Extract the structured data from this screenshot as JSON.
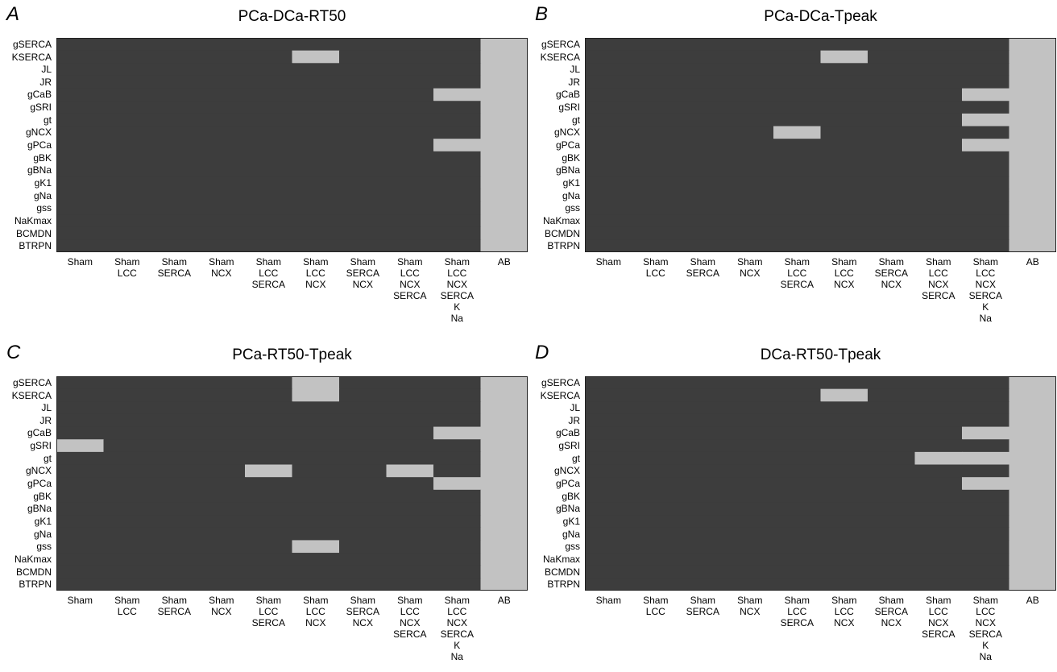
{
  "chart_data": [
    {
      "type": "heatmap",
      "panel": "A",
      "title": "PCa-DCa-RT50",
      "rows": [
        "gSERCA",
        "KSERCA",
        "JL",
        "JR",
        "gCaB",
        "gSRI",
        "gt",
        "gNCX",
        "gPCa",
        "gBK",
        "gBNa",
        "gK1",
        "gNa",
        "gss",
        "NaKmax",
        "BCMDN",
        "BTRPN"
      ],
      "columns": [
        [
          "Sham"
        ],
        [
          "Sham",
          "LCC"
        ],
        [
          "Sham",
          "SERCA"
        ],
        [
          "Sham",
          "NCX"
        ],
        [
          "Sham",
          "LCC",
          "SERCA"
        ],
        [
          "Sham",
          "LCC",
          "NCX"
        ],
        [
          "Sham",
          "SERCA",
          "NCX"
        ],
        [
          "Sham",
          "LCC",
          "NCX",
          "SERCA"
        ],
        [
          "Sham",
          "LCC",
          "NCX",
          "SERCA",
          "K",
          "Na"
        ],
        [
          "AB"
        ]
      ],
      "colors": {
        "off": "#3d3d3d",
        "on": "#c2c2c2"
      },
      "matrix": [
        [
          0,
          0,
          0,
          0,
          0,
          0,
          0,
          0,
          0,
          1
        ],
        [
          0,
          0,
          0,
          0,
          0,
          1,
          0,
          0,
          0,
          1
        ],
        [
          0,
          0,
          0,
          0,
          0,
          0,
          0,
          0,
          0,
          1
        ],
        [
          0,
          0,
          0,
          0,
          0,
          0,
          0,
          0,
          0,
          1
        ],
        [
          0,
          0,
          0,
          0,
          0,
          0,
          0,
          0,
          1,
          1
        ],
        [
          0,
          0,
          0,
          0,
          0,
          0,
          0,
          0,
          0,
          1
        ],
        [
          0,
          0,
          0,
          0,
          0,
          0,
          0,
          0,
          0,
          1
        ],
        [
          0,
          0,
          0,
          0,
          0,
          0,
          0,
          0,
          0,
          1
        ],
        [
          0,
          0,
          0,
          0,
          0,
          0,
          0,
          0,
          1,
          1
        ],
        [
          0,
          0,
          0,
          0,
          0,
          0,
          0,
          0,
          0,
          1
        ],
        [
          0,
          0,
          0,
          0,
          0,
          0,
          0,
          0,
          0,
          1
        ],
        [
          0,
          0,
          0,
          0,
          0,
          0,
          0,
          0,
          0,
          1
        ],
        [
          0,
          0,
          0,
          0,
          0,
          0,
          0,
          0,
          0,
          1
        ],
        [
          0,
          0,
          0,
          0,
          0,
          0,
          0,
          0,
          0,
          1
        ],
        [
          0,
          0,
          0,
          0,
          0,
          0,
          0,
          0,
          0,
          1
        ],
        [
          0,
          0,
          0,
          0,
          0,
          0,
          0,
          0,
          0,
          1
        ],
        [
          0,
          0,
          0,
          0,
          0,
          0,
          0,
          0,
          0,
          1
        ]
      ]
    },
    {
      "type": "heatmap",
      "panel": "B",
      "title": "PCa-DCa-Tpeak",
      "rows": [
        "gSERCA",
        "KSERCA",
        "JL",
        "JR",
        "gCaB",
        "gSRI",
        "gt",
        "gNCX",
        "gPCa",
        "gBK",
        "gBNa",
        "gK1",
        "gNa",
        "gss",
        "NaKmax",
        "BCMDN",
        "BTRPN"
      ],
      "columns": [
        [
          "Sham"
        ],
        [
          "Sham",
          "LCC"
        ],
        [
          "Sham",
          "SERCA"
        ],
        [
          "Sham",
          "NCX"
        ],
        [
          "Sham",
          "LCC",
          "SERCA"
        ],
        [
          "Sham",
          "LCC",
          "NCX"
        ],
        [
          "Sham",
          "SERCA",
          "NCX"
        ],
        [
          "Sham",
          "LCC",
          "NCX",
          "SERCA"
        ],
        [
          "Sham",
          "LCC",
          "NCX",
          "SERCA",
          "K",
          "Na"
        ],
        [
          "AB"
        ]
      ],
      "colors": {
        "off": "#3d3d3d",
        "on": "#c2c2c2"
      },
      "matrix": [
        [
          0,
          0,
          0,
          0,
          0,
          0,
          0,
          0,
          0,
          1
        ],
        [
          0,
          0,
          0,
          0,
          0,
          1,
          0,
          0,
          0,
          1
        ],
        [
          0,
          0,
          0,
          0,
          0,
          0,
          0,
          0,
          0,
          1
        ],
        [
          0,
          0,
          0,
          0,
          0,
          0,
          0,
          0,
          0,
          1
        ],
        [
          0,
          0,
          0,
          0,
          0,
          0,
          0,
          0,
          1,
          1
        ],
        [
          0,
          0,
          0,
          0,
          0,
          0,
          0,
          0,
          0,
          1
        ],
        [
          0,
          0,
          0,
          0,
          0,
          0,
          0,
          0,
          1,
          1
        ],
        [
          0,
          0,
          0,
          0,
          1,
          0,
          0,
          0,
          0,
          1
        ],
        [
          0,
          0,
          0,
          0,
          0,
          0,
          0,
          0,
          1,
          1
        ],
        [
          0,
          0,
          0,
          0,
          0,
          0,
          0,
          0,
          0,
          1
        ],
        [
          0,
          0,
          0,
          0,
          0,
          0,
          0,
          0,
          0,
          1
        ],
        [
          0,
          0,
          0,
          0,
          0,
          0,
          0,
          0,
          0,
          1
        ],
        [
          0,
          0,
          0,
          0,
          0,
          0,
          0,
          0,
          0,
          1
        ],
        [
          0,
          0,
          0,
          0,
          0,
          0,
          0,
          0,
          0,
          1
        ],
        [
          0,
          0,
          0,
          0,
          0,
          0,
          0,
          0,
          0,
          1
        ],
        [
          0,
          0,
          0,
          0,
          0,
          0,
          0,
          0,
          0,
          1
        ],
        [
          0,
          0,
          0,
          0,
          0,
          0,
          0,
          0,
          0,
          1
        ]
      ]
    },
    {
      "type": "heatmap",
      "panel": "C",
      "title": "PCa-RT50-Tpeak",
      "rows": [
        "gSERCA",
        "KSERCA",
        "JL",
        "JR",
        "gCaB",
        "gSRI",
        "gt",
        "gNCX",
        "gPCa",
        "gBK",
        "gBNa",
        "gK1",
        "gNa",
        "gss",
        "NaKmax",
        "BCMDN",
        "BTRPN"
      ],
      "columns": [
        [
          "Sham"
        ],
        [
          "Sham",
          "LCC"
        ],
        [
          "Sham",
          "SERCA"
        ],
        [
          "Sham",
          "NCX"
        ],
        [
          "Sham",
          "LCC",
          "SERCA"
        ],
        [
          "Sham",
          "LCC",
          "NCX"
        ],
        [
          "Sham",
          "SERCA",
          "NCX"
        ],
        [
          "Sham",
          "LCC",
          "NCX",
          "SERCA"
        ],
        [
          "Sham",
          "LCC",
          "NCX",
          "SERCA",
          "K",
          "Na"
        ],
        [
          "AB"
        ]
      ],
      "colors": {
        "off": "#3d3d3d",
        "on": "#c2c2c2"
      },
      "matrix": [
        [
          0,
          0,
          0,
          0,
          0,
          1,
          0,
          0,
          0,
          1
        ],
        [
          0,
          0,
          0,
          0,
          0,
          1,
          0,
          0,
          0,
          1
        ],
        [
          0,
          0,
          0,
          0,
          0,
          0,
          0,
          0,
          0,
          1
        ],
        [
          0,
          0,
          0,
          0,
          0,
          0,
          0,
          0,
          0,
          1
        ],
        [
          0,
          0,
          0,
          0,
          0,
          0,
          0,
          0,
          1,
          1
        ],
        [
          1,
          0,
          0,
          0,
          0,
          0,
          0,
          0,
          0,
          1
        ],
        [
          0,
          0,
          0,
          0,
          0,
          0,
          0,
          0,
          0,
          1
        ],
        [
          0,
          0,
          0,
          0,
          1,
          0,
          0,
          1,
          0,
          1
        ],
        [
          0,
          0,
          0,
          0,
          0,
          0,
          0,
          0,
          1,
          1
        ],
        [
          0,
          0,
          0,
          0,
          0,
          0,
          0,
          0,
          0,
          1
        ],
        [
          0,
          0,
          0,
          0,
          0,
          0,
          0,
          0,
          0,
          1
        ],
        [
          0,
          0,
          0,
          0,
          0,
          0,
          0,
          0,
          0,
          1
        ],
        [
          0,
          0,
          0,
          0,
          0,
          0,
          0,
          0,
          0,
          1
        ],
        [
          0,
          0,
          0,
          0,
          0,
          1,
          0,
          0,
          0,
          1
        ],
        [
          0,
          0,
          0,
          0,
          0,
          0,
          0,
          0,
          0,
          1
        ],
        [
          0,
          0,
          0,
          0,
          0,
          0,
          0,
          0,
          0,
          1
        ],
        [
          0,
          0,
          0,
          0,
          0,
          0,
          0,
          0,
          0,
          1
        ]
      ]
    },
    {
      "type": "heatmap",
      "panel": "D",
      "title": "DCa-RT50-Tpeak",
      "rows": [
        "gSERCA",
        "KSERCA",
        "JL",
        "JR",
        "gCaB",
        "gSRI",
        "gt",
        "gNCX",
        "gPCa",
        "gBK",
        "gBNa",
        "gK1",
        "gNa",
        "gss",
        "NaKmax",
        "BCMDN",
        "BTRPN"
      ],
      "columns": [
        [
          "Sham"
        ],
        [
          "Sham",
          "LCC"
        ],
        [
          "Sham",
          "SERCA"
        ],
        [
          "Sham",
          "NCX"
        ],
        [
          "Sham",
          "LCC",
          "SERCA"
        ],
        [
          "Sham",
          "LCC",
          "NCX"
        ],
        [
          "Sham",
          "SERCA",
          "NCX"
        ],
        [
          "Sham",
          "LCC",
          "NCX",
          "SERCA"
        ],
        [
          "Sham",
          "LCC",
          "NCX",
          "SERCA",
          "K",
          "Na"
        ],
        [
          "AB"
        ]
      ],
      "colors": {
        "off": "#3d3d3d",
        "on": "#c2c2c2"
      },
      "matrix": [
        [
          0,
          0,
          0,
          0,
          0,
          0,
          0,
          0,
          0,
          1
        ],
        [
          0,
          0,
          0,
          0,
          0,
          1,
          0,
          0,
          0,
          1
        ],
        [
          0,
          0,
          0,
          0,
          0,
          0,
          0,
          0,
          0,
          1
        ],
        [
          0,
          0,
          0,
          0,
          0,
          0,
          0,
          0,
          0,
          1
        ],
        [
          0,
          0,
          0,
          0,
          0,
          0,
          0,
          0,
          1,
          1
        ],
        [
          0,
          0,
          0,
          0,
          0,
          0,
          0,
          0,
          0,
          1
        ],
        [
          0,
          0,
          0,
          0,
          0,
          0,
          0,
          1,
          1,
          1
        ],
        [
          0,
          0,
          0,
          0,
          0,
          0,
          0,
          0,
          0,
          1
        ],
        [
          0,
          0,
          0,
          0,
          0,
          0,
          0,
          0,
          1,
          1
        ],
        [
          0,
          0,
          0,
          0,
          0,
          0,
          0,
          0,
          0,
          1
        ],
        [
          0,
          0,
          0,
          0,
          0,
          0,
          0,
          0,
          0,
          1
        ],
        [
          0,
          0,
          0,
          0,
          0,
          0,
          0,
          0,
          0,
          1
        ],
        [
          0,
          0,
          0,
          0,
          0,
          0,
          0,
          0,
          0,
          1
        ],
        [
          0,
          0,
          0,
          0,
          0,
          0,
          0,
          0,
          0,
          1
        ],
        [
          0,
          0,
          0,
          0,
          0,
          0,
          0,
          0,
          0,
          1
        ],
        [
          0,
          0,
          0,
          0,
          0,
          0,
          0,
          0,
          0,
          1
        ],
        [
          0,
          0,
          0,
          0,
          0,
          0,
          0,
          0,
          0,
          1
        ]
      ]
    }
  ]
}
